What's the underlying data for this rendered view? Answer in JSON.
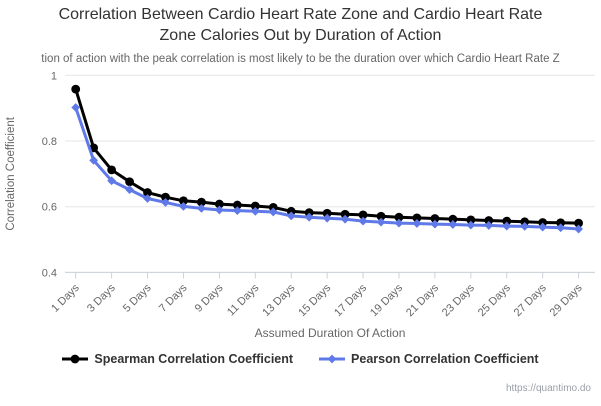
{
  "page": {
    "watermark": "https://quantimo.do"
  },
  "chart_data": {
    "type": "line",
    "title": "Correlation Between Cardio Heart Rate Zone and Cardio Heart Rate Zone Calories Out by Duration of Action",
    "subtitle_visible": "tion of action with the peak correlation is most likely to be the duration over which Cardio Heart Rate Z",
    "xlabel": "Assumed Duration Of Action",
    "ylabel": "Correlation Coefficient",
    "x": [
      1,
      2,
      3,
      4,
      5,
      6,
      7,
      8,
      9,
      10,
      11,
      12,
      13,
      14,
      15,
      16,
      17,
      18,
      19,
      20,
      21,
      22,
      23,
      24,
      25,
      26,
      27,
      28,
      29
    ],
    "x_tick_labels": [
      "1 Days",
      "3 Days",
      "5 Days",
      "7 Days",
      "9 Days",
      "11 Days",
      "13 Days",
      "15 Days",
      "17 Days",
      "19 Days",
      "21 Days",
      "23 Days",
      "25 Days",
      "27 Days",
      "29 Days"
    ],
    "ylim": [
      0.4,
      1.0
    ],
    "yticks": [
      1,
      0.8,
      0.6,
      0.4
    ],
    "ytick_labels": [
      "1",
      "0.8",
      "0.6",
      "0.4"
    ],
    "grid": "horizontal",
    "legend_position": "bottom",
    "colors": {
      "grid": "#e6e6e6",
      "axis": "#ccd1d9",
      "tick_label": "#666666",
      "axis_title": "#666666"
    },
    "series": [
      {
        "name": "Spearman Correlation Coefficient",
        "color": "#000000",
        "marker": "circle",
        "values": [
          0.958,
          0.779,
          0.712,
          0.676,
          0.643,
          0.629,
          0.618,
          0.614,
          0.608,
          0.605,
          0.602,
          0.598,
          0.586,
          0.582,
          0.58,
          0.577,
          0.575,
          0.571,
          0.568,
          0.566,
          0.564,
          0.562,
          0.56,
          0.558,
          0.556,
          0.554,
          0.552,
          0.551,
          0.55
        ]
      },
      {
        "name": "Pearson Correlation Coefficient",
        "color": "#5f7ae8",
        "marker": "diamond",
        "values": [
          0.902,
          0.741,
          0.679,
          0.652,
          0.625,
          0.613,
          0.601,
          0.595,
          0.59,
          0.588,
          0.586,
          0.584,
          0.572,
          0.568,
          0.565,
          0.562,
          0.556,
          0.553,
          0.55,
          0.549,
          0.547,
          0.546,
          0.544,
          0.543,
          0.541,
          0.54,
          0.538,
          0.536,
          0.532
        ]
      }
    ]
  }
}
